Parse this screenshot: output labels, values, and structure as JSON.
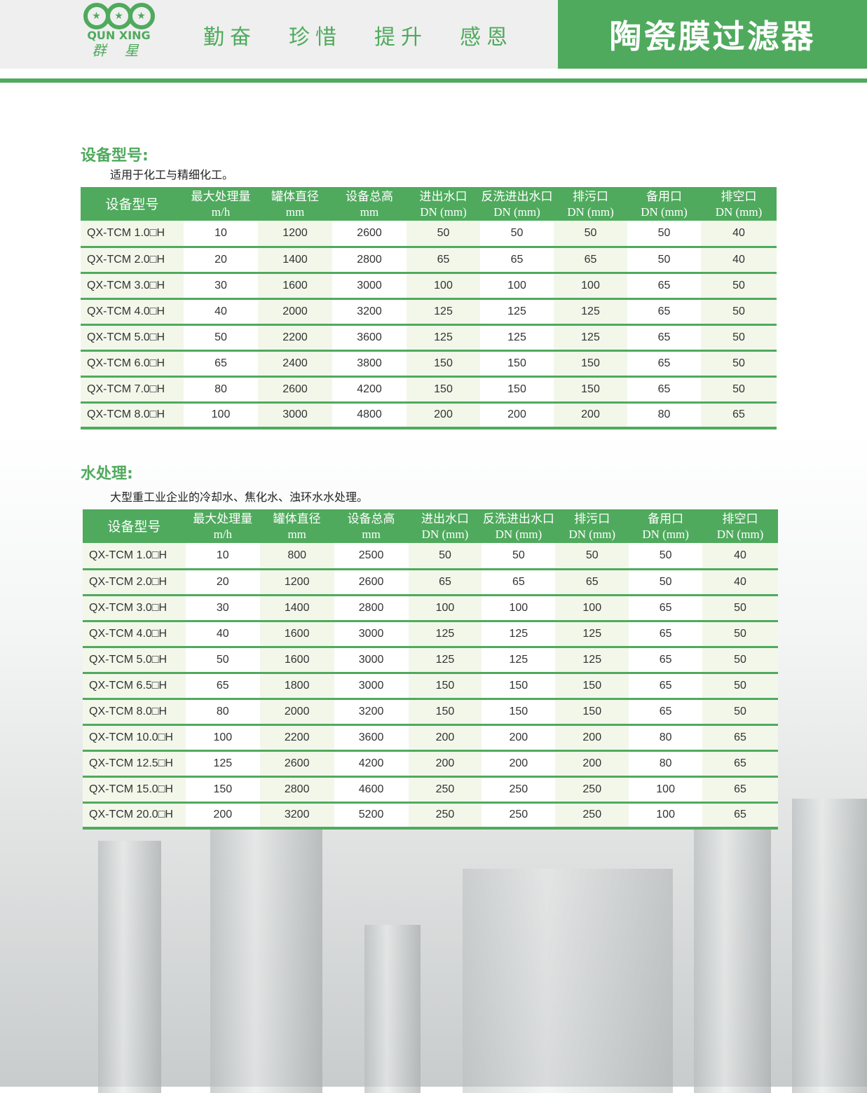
{
  "header": {
    "logo_en": "QUN XING",
    "logo_cn": "群 星",
    "slogans": [
      "勤奋",
      "珍惜",
      "提升",
      "感恩"
    ],
    "title": "陶瓷膜过滤器"
  },
  "colors": {
    "brand_green": "#4faa5d",
    "row_tint": "#f2f7ea"
  },
  "columns": [
    {
      "name": "设备型号",
      "unit": ""
    },
    {
      "name": "最大处理量",
      "unit": "m/h"
    },
    {
      "name": "罐体直径",
      "unit": "mm"
    },
    {
      "name": "设备总高",
      "unit": "mm"
    },
    {
      "name": "进出水口",
      "unit": "DN (mm)"
    },
    {
      "name": "反洗进出水口",
      "unit": "DN (mm)"
    },
    {
      "name": "排污口",
      "unit": "DN (mm)"
    },
    {
      "name": "备用口",
      "unit": "DN (mm)"
    },
    {
      "name": "排空口",
      "unit": "DN (mm)"
    }
  ],
  "sections": [
    {
      "title": "设备型号:",
      "desc": "适用于化工与精细化工。",
      "rows": [
        [
          "QX-TCM 1.0□H",
          "10",
          "1200",
          "2600",
          "50",
          "50",
          "50",
          "50",
          "40"
        ],
        [
          "QX-TCM 2.0□H",
          "20",
          "1400",
          "2800",
          "65",
          "65",
          "65",
          "50",
          "40"
        ],
        [
          "QX-TCM 3.0□H",
          "30",
          "1600",
          "3000",
          "100",
          "100",
          "100",
          "65",
          "50"
        ],
        [
          "QX-TCM 4.0□H",
          "40",
          "2000",
          "3200",
          "125",
          "125",
          "125",
          "65",
          "50"
        ],
        [
          "QX-TCM 5.0□H",
          "50",
          "2200",
          "3600",
          "125",
          "125",
          "125",
          "65",
          "50"
        ],
        [
          "QX-TCM 6.0□H",
          "65",
          "2400",
          "3800",
          "150",
          "150",
          "150",
          "65",
          "50"
        ],
        [
          "QX-TCM 7.0□H",
          "80",
          "2600",
          "4200",
          "150",
          "150",
          "150",
          "65",
          "50"
        ],
        [
          "QX-TCM 8.0□H",
          "100",
          "3000",
          "4800",
          "200",
          "200",
          "200",
          "80",
          "65"
        ]
      ]
    },
    {
      "title": "水处理:",
      "desc": "大型重工业企业的冷却水、焦化水、浊环水水处理。",
      "rows": [
        [
          "QX-TCM 1.0□H",
          "10",
          "800",
          "2500",
          "50",
          "50",
          "50",
          "50",
          "40"
        ],
        [
          "QX-TCM 2.0□H",
          "20",
          "1200",
          "2600",
          "65",
          "65",
          "65",
          "50",
          "40"
        ],
        [
          "QX-TCM 3.0□H",
          "30",
          "1400",
          "2800",
          "100",
          "100",
          "100",
          "65",
          "50"
        ],
        [
          "QX-TCM 4.0□H",
          "40",
          "1600",
          "3000",
          "125",
          "125",
          "125",
          "65",
          "50"
        ],
        [
          "QX-TCM 5.0□H",
          "50",
          "1600",
          "3000",
          "125",
          "125",
          "125",
          "65",
          "50"
        ],
        [
          "QX-TCM 6.5□H",
          "65",
          "1800",
          "3000",
          "150",
          "150",
          "150",
          "65",
          "50"
        ],
        [
          "QX-TCM 8.0□H",
          "80",
          "2000",
          "3200",
          "150",
          "150",
          "150",
          "65",
          "50"
        ],
        [
          "QX-TCM 10.0□H",
          "100",
          "2200",
          "3600",
          "200",
          "200",
          "200",
          "80",
          "65"
        ],
        [
          "QX-TCM 12.5□H",
          "125",
          "2600",
          "4200",
          "200",
          "200",
          "200",
          "80",
          "65"
        ],
        [
          "QX-TCM 15.0□H",
          "150",
          "2800",
          "4600",
          "250",
          "250",
          "250",
          "100",
          "65"
        ],
        [
          "QX-TCM 20.0□H",
          "200",
          "3200",
          "5200",
          "250",
          "250",
          "250",
          "100",
          "65"
        ]
      ]
    }
  ]
}
